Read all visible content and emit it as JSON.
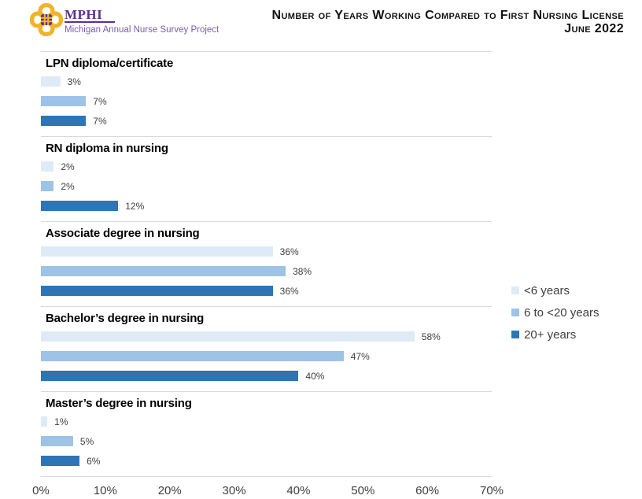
{
  "header": {
    "logo": {
      "acronym": "MPHI",
      "subtitle": "Michigan Annual Nurse Survey Project",
      "purple": "#5C2E91",
      "purple_light": "#7A5CAD",
      "gold": "#F0B428"
    },
    "title_line1": "Number of Years Working Compared to First Nursing License",
    "title_line2": "June 2022"
  },
  "chart_data": {
    "type": "bar",
    "orientation": "horizontal",
    "title": "Number of Years Working Compared to First Nursing License",
    "subtitle": "June 2022",
    "xlabel": "",
    "ylabel": "",
    "axis_max": 70,
    "x_ticks": [
      "0%",
      "10%",
      "20%",
      "30%",
      "40%",
      "50%",
      "60%",
      "70%"
    ],
    "grid": "group-separators-only",
    "legend_position": "right",
    "series": [
      {
        "name": "<6 years",
        "color": "#DEEBF7"
      },
      {
        "name": "6 to <20 years",
        "color": "#9DC3E6"
      },
      {
        "name": "20+ years",
        "color": "#2E75B6"
      }
    ],
    "groups": [
      {
        "label": "LPN diploma/certificate",
        "values": [
          3,
          7,
          7
        ],
        "labels": [
          "3%",
          "7%",
          "7%"
        ]
      },
      {
        "label": "RN diploma in nursing",
        "values": [
          2,
          2,
          12
        ],
        "labels": [
          "2%",
          "2%",
          "12%"
        ]
      },
      {
        "label": "Associate degree in nursing",
        "values": [
          36,
          38,
          36
        ],
        "labels": [
          "36%",
          "38%",
          "36%"
        ]
      },
      {
        "label": "Bachelor’s degree in nursing",
        "values": [
          58,
          47,
          40
        ],
        "labels": [
          "58%",
          "47%",
          "40%"
        ]
      },
      {
        "label": "Master’s degree in nursing",
        "values": [
          1,
          5,
          6
        ],
        "labels": [
          "1%",
          "5%",
          "6%"
        ]
      }
    ]
  }
}
